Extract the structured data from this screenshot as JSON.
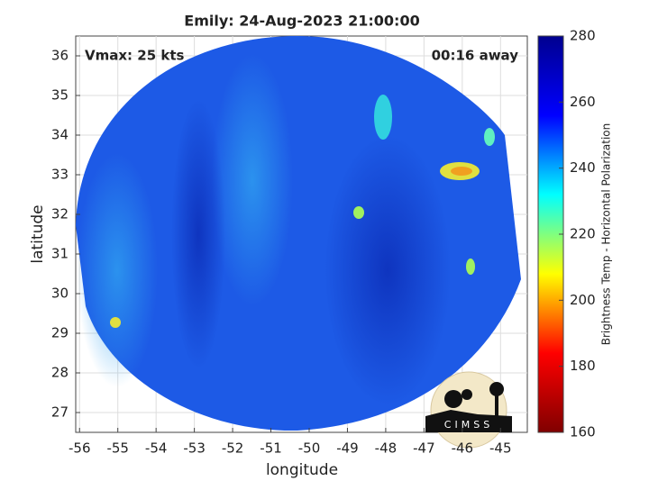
{
  "chart_data": {
    "type": "image",
    "title": "Emily: 24-Aug-2023 21:00:00",
    "annotations": [
      "Vmax: 25 kts",
      "00:16 away"
    ],
    "xlabel": "longitude",
    "ylabel": "latitude",
    "xlim": [
      -56.1,
      -44.3
    ],
    "xticks": [
      -56,
      -55,
      -54,
      -53,
      -52,
      -51,
      -50,
      -49,
      -48,
      -47,
      -46,
      -45
    ],
    "ylim": [
      26.5,
      36.5
    ],
    "yticks": [
      27,
      28,
      29,
      30,
      31,
      32,
      33,
      34,
      35,
      36
    ],
    "grid": true,
    "colorbar": {
      "label": "Brightness Temp - Horizontal Polarization",
      "clim": [
        160,
        280
      ],
      "ticks": [
        160,
        180,
        200,
        220,
        240,
        260,
        280
      ],
      "colormap": [
        "#800000",
        "#ff0000",
        "#ffff00",
        "#00ffff",
        "#0000ff",
        "#00008f"
      ]
    },
    "logo": "CIMSS"
  }
}
